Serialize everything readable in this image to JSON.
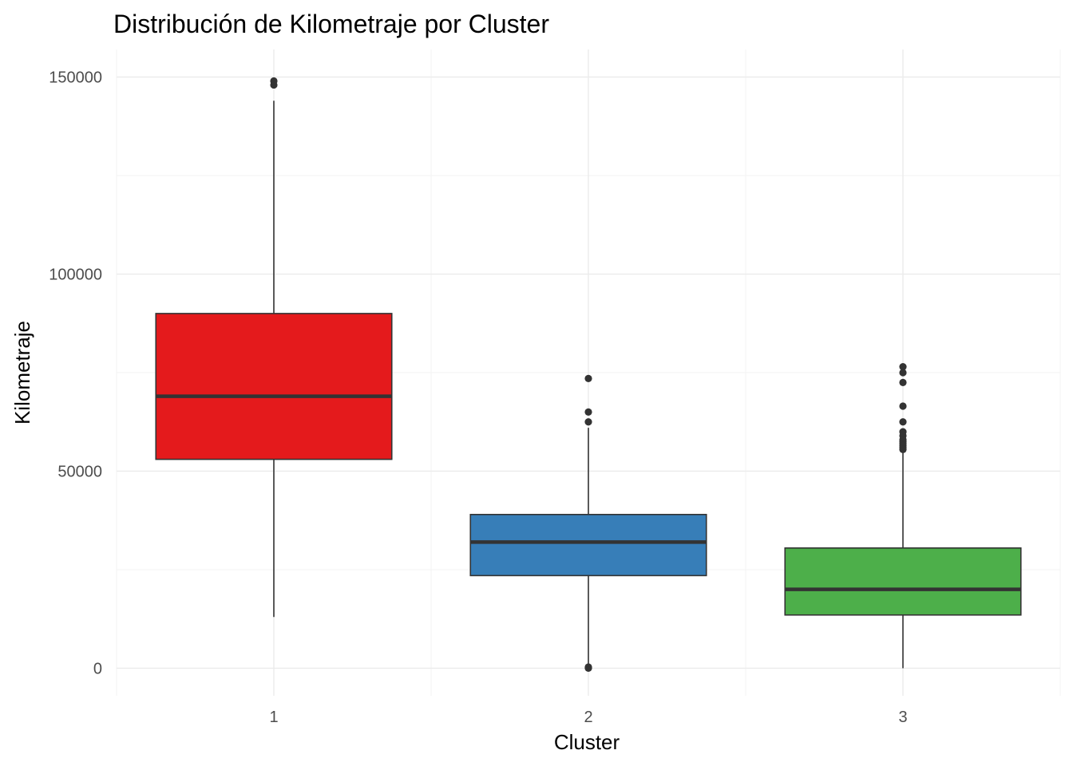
{
  "chart_data": {
    "type": "boxplot",
    "title": "Distribución de Kilometraje por Cluster",
    "xlabel": "Cluster",
    "ylabel": "Kilometraje",
    "categories": [
      "1",
      "2",
      "3"
    ],
    "ylim": [
      -7000,
      157000
    ],
    "yticks": [
      0,
      50000,
      100000,
      150000
    ],
    "ytick_labels": [
      "0",
      "50000",
      "100000",
      "150000"
    ],
    "grid": true,
    "legend": "none",
    "boxes": [
      {
        "cluster": "1",
        "color": "#E41A1C",
        "whisker_low": 13000,
        "q1": 53000,
        "median": 69000,
        "q3": 90000,
        "whisker_high": 144000,
        "outliers": [
          148000,
          149000
        ]
      },
      {
        "cluster": "2",
        "color": "#377EB8",
        "whisker_low": 500,
        "q1": 23500,
        "median": 32000,
        "q3": 39000,
        "whisker_high": 61000,
        "outliers": [
          73500,
          65000,
          62500,
          300,
          100,
          0
        ]
      },
      {
        "cluster": "3",
        "color": "#4DAF4A",
        "whisker_low": 0,
        "q1": 13500,
        "median": 20000,
        "q3": 30500,
        "whisker_high": 55000,
        "outliers": [
          76500,
          75000,
          72500,
          66500,
          62500,
          60000,
          59000,
          58000,
          57500,
          57000,
          56500,
          56000,
          55500
        ]
      }
    ]
  }
}
